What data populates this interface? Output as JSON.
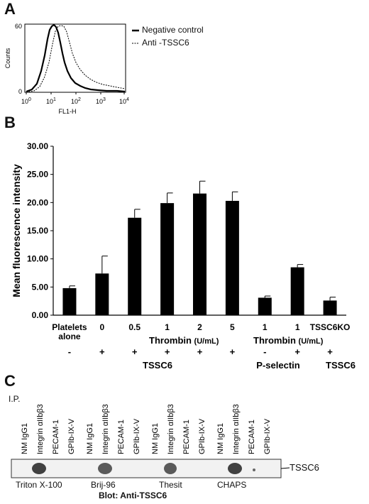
{
  "panelA": {
    "letter": "A",
    "y_axis_label": "Counts",
    "x_axis_label": "FL1-H",
    "y_ticks": [
      "0",
      "60"
    ],
    "x_tick_bases": [
      "10",
      "10",
      "10",
      "10",
      "10"
    ],
    "x_tick_exps": [
      "0",
      "1",
      "2",
      "3",
      "4"
    ],
    "legend": [
      {
        "label": "Negative control",
        "style": "solid"
      },
      {
        "label": "Anti -TSSC6",
        "style": "dotted"
      }
    ]
  },
  "panelB": {
    "letter": "B",
    "thrombin_label": "Thrombin",
    "unit_label": "(U/mL)",
    "tssc6_label": "TSSC6",
    "pselectin_label": "P-selectin",
    "sign_labels": [
      "-",
      "+",
      "+",
      "+",
      "+",
      "+",
      "-",
      "+",
      "+"
    ]
  },
  "chart_data": {
    "type": "bar",
    "ylabel": "Mean fluorescence intensity",
    "ylim": [
      0,
      30
    ],
    "ytick_labels": [
      "0.00",
      "5.00",
      "10.00",
      "15.00",
      "20.00",
      "25.00",
      "30.00"
    ],
    "categories": [
      "Platelets alone",
      "0",
      "0.5",
      "1",
      "2",
      "5",
      "1",
      "1",
      "TSSC6KO"
    ],
    "values": [
      4.8,
      7.4,
      17.3,
      19.9,
      21.6,
      20.3,
      3.1,
      8.5,
      2.6
    ],
    "errors": [
      0.4,
      3.1,
      1.5,
      1.8,
      2.2,
      1.6,
      0.3,
      0.5,
      0.6
    ],
    "color": "#000000",
    "grid": false,
    "legend": "none"
  },
  "panelC": {
    "letter": "C",
    "ip_label": "I.P.",
    "lane_labels": [
      "NM IgG1",
      "Integrin αIIbβ3",
      "PECAM-1",
      "GPIb-IX-V",
      "NM IgG1",
      "Integrin αIIbβ3",
      "PECAM-1",
      "GPIb-IX-V",
      "NM IgG1",
      "Integrin αIIbβ3",
      "PECAM-1",
      "GPIb-IX-V",
      "NM IgG1",
      "Integrin αIIbβ3",
      "PECAM-1",
      "GPIb-IX-V"
    ],
    "detergents": [
      "Triton X-100",
      "Brij-96",
      "Thesit",
      "CHAPS"
    ],
    "band_label": "TSSC6",
    "blot_label": "Blot:  Anti-TSSC6"
  }
}
